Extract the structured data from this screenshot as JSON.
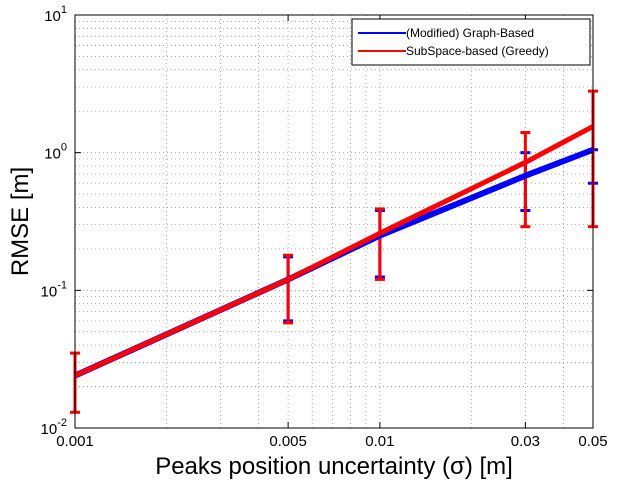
{
  "chart_data": {
    "type": "line",
    "xscale": "log",
    "yscale": "log",
    "xlabel": "Peaks position uncertainty (σ) [m]",
    "ylabel": "RMSE [m]",
    "xlim": [
      0.001,
      0.05
    ],
    "ylim": [
      0.01,
      10
    ],
    "x_ticks": [
      {
        "value": 0.001,
        "label": "0.001"
      },
      {
        "value": 0.005,
        "label": "0.005"
      },
      {
        "value": 0.01,
        "label": "0.01"
      },
      {
        "value": 0.03,
        "label": "0.03"
      },
      {
        "value": 0.05,
        "label": "0.05"
      }
    ],
    "y_ticks": [
      {
        "value": 0.01,
        "base": "10",
        "exp": "-2"
      },
      {
        "value": 0.1,
        "base": "10",
        "exp": "-1"
      },
      {
        "value": 1,
        "base": "10",
        "exp": "0"
      },
      {
        "value": 10,
        "base": "10",
        "exp": "1"
      }
    ],
    "grid": true,
    "legend_position": "top-right",
    "x": [
      0.001,
      0.005,
      0.01,
      0.03,
      0.05
    ],
    "series": [
      {
        "name": "(Modified) Graph-Based",
        "color": "#0000ff",
        "values": [
          0.024,
          0.12,
          0.25,
          0.68,
          1.05
        ],
        "err_low": [
          0.024,
          0.06,
          0.125,
          0.38,
          0.6
        ],
        "err_high": [
          0.024,
          0.175,
          0.38,
          1.0,
          1.05
        ]
      },
      {
        "name": "SubSpace-based (Greedy)",
        "color": "#ff0000",
        "values": [
          0.024,
          0.12,
          0.26,
          0.85,
          1.55
        ],
        "err_low": [
          0.013,
          0.058,
          0.12,
          0.29,
          0.29
        ],
        "err_high": [
          0.035,
          0.18,
          0.39,
          1.4,
          2.8
        ]
      }
    ]
  }
}
